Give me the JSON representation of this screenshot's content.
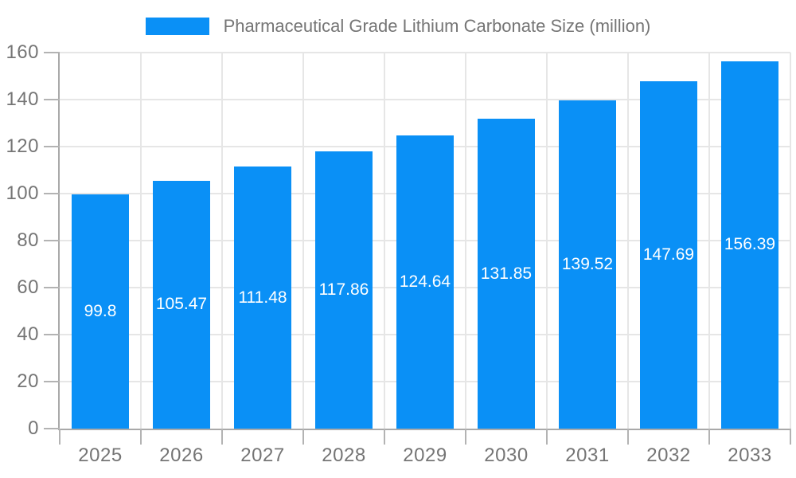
{
  "chart_data": {
    "type": "bar",
    "title": "Pharmaceutical Grade Lithium Carbonate Size (million)",
    "categories": [
      "2025",
      "2026",
      "2027",
      "2028",
      "2029",
      "2030",
      "2031",
      "2032",
      "2033"
    ],
    "series": [
      {
        "name": "Pharmaceutical Grade Lithium Carbonate Size (million)",
        "values": [
          99.8,
          105.47,
          111.48,
          117.86,
          124.64,
          131.85,
          139.52,
          147.69,
          156.39
        ]
      }
    ],
    "data_labels": [
      "99.8",
      "105.47",
      "111.48",
      "117.86",
      "124.64",
      "131.85",
      "139.52",
      "147.69",
      "156.39"
    ],
    "xlabel": "",
    "ylabel": "",
    "ylim": [
      0,
      160
    ],
    "yticks": [
      0,
      20,
      40,
      60,
      80,
      100,
      120,
      140,
      160
    ],
    "grid": true,
    "legend_position": "top",
    "data_label_position": "inside-center"
  },
  "colors": {
    "bar": "#0a90f6",
    "bar_label": "#ffffff",
    "grid": "#e6e6e6",
    "axis": "#a9a9a9",
    "tick": "#b3b3b3",
    "tick_text": "#757575",
    "title_text": "#757575",
    "background": "#ffffff"
  }
}
